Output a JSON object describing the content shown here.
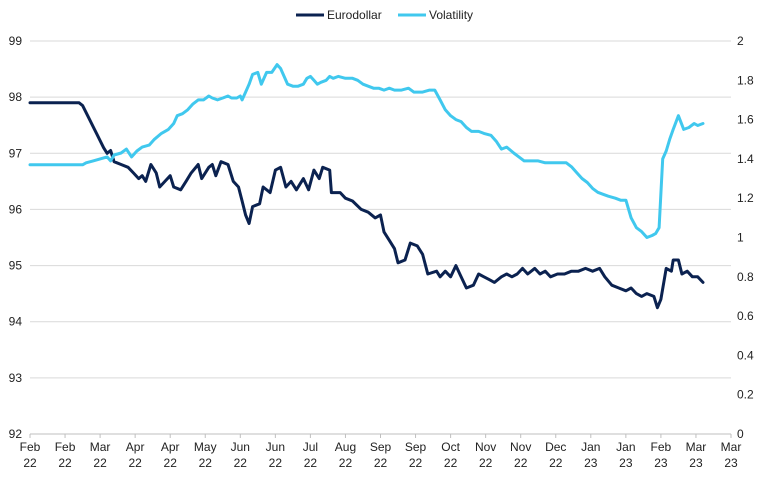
{
  "chart_data": {
    "type": "line",
    "title": "",
    "legend_position": "top-center",
    "grid": true,
    "x_tick_labels": [
      [
        "Feb",
        "22"
      ],
      [
        "Feb",
        "22"
      ],
      [
        "Mar",
        "22"
      ],
      [
        "Apr",
        "22"
      ],
      [
        "Apr",
        "22"
      ],
      [
        "May",
        "22"
      ],
      [
        "Jun",
        "22"
      ],
      [
        "Jun",
        "22"
      ],
      [
        "Jul",
        "22"
      ],
      [
        "Aug",
        "22"
      ],
      [
        "Sep",
        "22"
      ],
      [
        "Sep",
        "22"
      ],
      [
        "Oct",
        "22"
      ],
      [
        "Nov",
        "22"
      ],
      [
        "Nov",
        "22"
      ],
      [
        "Dec",
        "22"
      ],
      [
        "Jan",
        "23"
      ],
      [
        "Jan",
        "23"
      ],
      [
        "Feb",
        "23"
      ],
      [
        "Mar",
        "23"
      ],
      [
        "Mar",
        "23"
      ]
    ],
    "x_range": [
      0,
      20
    ],
    "y_left": {
      "min": 92,
      "max": 99,
      "ticks": [
        "92",
        "93",
        "94",
        "95",
        "96",
        "97",
        "98",
        "99"
      ]
    },
    "y_right": {
      "min": 0,
      "max": 2,
      "ticks": [
        "0",
        "0.2",
        "0.4",
        "0.6",
        "0.8",
        "1",
        "1.2",
        "1.4",
        "1.6",
        "1.8",
        "2"
      ]
    },
    "series": [
      {
        "name": "Eurodollar",
        "axis": "left",
        "color": "#0b2250",
        "points": [
          [
            0,
            97.9
          ],
          [
            1.4,
            97.9
          ],
          [
            1.5,
            97.85
          ],
          [
            1.7,
            97.6
          ],
          [
            1.9,
            97.35
          ],
          [
            2.1,
            97.1
          ],
          [
            2.2,
            97.0
          ],
          [
            2.3,
            97.05
          ],
          [
            2.4,
            96.85
          ],
          [
            2.6,
            96.8
          ],
          [
            2.8,
            96.75
          ],
          [
            2.95,
            96.65
          ],
          [
            3.1,
            96.55
          ],
          [
            3.2,
            96.6
          ],
          [
            3.3,
            96.5
          ],
          [
            3.45,
            96.8
          ],
          [
            3.6,
            96.65
          ],
          [
            3.7,
            96.4
          ],
          [
            3.85,
            96.5
          ],
          [
            4.0,
            96.6
          ],
          [
            4.1,
            96.4
          ],
          [
            4.3,
            96.35
          ],
          [
            4.45,
            96.5
          ],
          [
            4.6,
            96.65
          ],
          [
            4.8,
            96.8
          ],
          [
            4.9,
            96.55
          ],
          [
            5.1,
            96.75
          ],
          [
            5.2,
            96.8
          ],
          [
            5.3,
            96.6
          ],
          [
            5.45,
            96.85
          ],
          [
            5.65,
            96.8
          ],
          [
            5.8,
            96.5
          ],
          [
            5.95,
            96.4
          ],
          [
            6.05,
            96.15
          ],
          [
            6.15,
            95.9
          ],
          [
            6.25,
            95.75
          ],
          [
            6.35,
            96.05
          ],
          [
            6.55,
            96.1
          ],
          [
            6.65,
            96.4
          ],
          [
            6.85,
            96.3
          ],
          [
            7.0,
            96.7
          ],
          [
            7.15,
            96.75
          ],
          [
            7.3,
            96.4
          ],
          [
            7.45,
            96.5
          ],
          [
            7.6,
            96.35
          ],
          [
            7.8,
            96.55
          ],
          [
            7.95,
            96.35
          ],
          [
            8.1,
            96.7
          ],
          [
            8.25,
            96.55
          ],
          [
            8.35,
            96.75
          ],
          [
            8.55,
            96.7
          ],
          [
            8.6,
            96.3
          ],
          [
            8.85,
            96.3
          ],
          [
            9.0,
            96.2
          ],
          [
            9.2,
            96.15
          ],
          [
            9.45,
            96.0
          ],
          [
            9.65,
            95.95
          ],
          [
            9.85,
            95.85
          ],
          [
            10.0,
            95.9
          ],
          [
            10.1,
            95.6
          ],
          [
            10.25,
            95.45
          ],
          [
            10.4,
            95.3
          ],
          [
            10.5,
            95.05
          ],
          [
            10.7,
            95.1
          ],
          [
            10.85,
            95.4
          ],
          [
            11.05,
            95.35
          ],
          [
            11.2,
            95.2
          ],
          [
            11.35,
            94.85
          ],
          [
            11.6,
            94.9
          ],
          [
            11.7,
            94.8
          ],
          [
            11.85,
            94.9
          ],
          [
            12.0,
            94.8
          ],
          [
            12.15,
            95.0
          ],
          [
            12.3,
            94.8
          ],
          [
            12.45,
            94.6
          ],
          [
            12.65,
            94.65
          ],
          [
            12.8,
            94.85
          ],
          [
            12.95,
            94.8
          ],
          [
            13.1,
            94.75
          ],
          [
            13.25,
            94.7
          ],
          [
            13.45,
            94.8
          ],
          [
            13.6,
            94.85
          ],
          [
            13.75,
            94.8
          ],
          [
            13.9,
            94.85
          ],
          [
            14.05,
            94.95
          ],
          [
            14.2,
            94.85
          ],
          [
            14.4,
            94.95
          ],
          [
            14.55,
            94.85
          ],
          [
            14.7,
            94.9
          ],
          [
            14.85,
            94.8
          ],
          [
            15.05,
            94.85
          ],
          [
            15.25,
            94.85
          ],
          [
            15.45,
            94.9
          ],
          [
            15.65,
            94.9
          ],
          [
            15.85,
            94.95
          ],
          [
            16.05,
            94.9
          ],
          [
            16.25,
            94.95
          ],
          [
            16.4,
            94.8
          ],
          [
            16.6,
            94.65
          ],
          [
            16.8,
            94.6
          ],
          [
            17.0,
            94.55
          ],
          [
            17.15,
            94.6
          ],
          [
            17.3,
            94.5
          ],
          [
            17.45,
            94.45
          ],
          [
            17.6,
            94.5
          ],
          [
            17.8,
            94.45
          ],
          [
            17.9,
            94.25
          ],
          [
            18.0,
            94.4
          ],
          [
            18.15,
            94.95
          ],
          [
            18.3,
            94.9
          ],
          [
            18.35,
            95.1
          ],
          [
            18.5,
            95.1
          ],
          [
            18.6,
            94.85
          ],
          [
            18.75,
            94.9
          ],
          [
            18.9,
            94.8
          ],
          [
            19.05,
            94.8
          ],
          [
            19.2,
            94.7
          ]
        ]
      },
      {
        "name": "Volatility",
        "axis": "right",
        "color": "#40c8ee",
        "points": [
          [
            0,
            1.37
          ],
          [
            1.5,
            1.37
          ],
          [
            1.6,
            1.38
          ],
          [
            1.8,
            1.39
          ],
          [
            2.0,
            1.4
          ],
          [
            2.2,
            1.41
          ],
          [
            2.3,
            1.39
          ],
          [
            2.4,
            1.42
          ],
          [
            2.6,
            1.43
          ],
          [
            2.75,
            1.45
          ],
          [
            2.9,
            1.41
          ],
          [
            3.05,
            1.44
          ],
          [
            3.2,
            1.46
          ],
          [
            3.4,
            1.47
          ],
          [
            3.55,
            1.5
          ],
          [
            3.75,
            1.53
          ],
          [
            3.95,
            1.55
          ],
          [
            4.1,
            1.58
          ],
          [
            4.2,
            1.62
          ],
          [
            4.35,
            1.63
          ],
          [
            4.5,
            1.65
          ],
          [
            4.65,
            1.68
          ],
          [
            4.8,
            1.7
          ],
          [
            4.95,
            1.7
          ],
          [
            5.1,
            1.72
          ],
          [
            5.2,
            1.71
          ],
          [
            5.35,
            1.7
          ],
          [
            5.5,
            1.71
          ],
          [
            5.65,
            1.72
          ],
          [
            5.75,
            1.71
          ],
          [
            5.9,
            1.71
          ],
          [
            6.0,
            1.72
          ],
          [
            6.05,
            1.7
          ],
          [
            6.15,
            1.74
          ],
          [
            6.25,
            1.78
          ],
          [
            6.35,
            1.83
          ],
          [
            6.5,
            1.84
          ],
          [
            6.6,
            1.78
          ],
          [
            6.75,
            1.84
          ],
          [
            6.9,
            1.84
          ],
          [
            7.05,
            1.88
          ],
          [
            7.15,
            1.86
          ],
          [
            7.25,
            1.82
          ],
          [
            7.35,
            1.78
          ],
          [
            7.5,
            1.77
          ],
          [
            7.65,
            1.77
          ],
          [
            7.8,
            1.78
          ],
          [
            7.9,
            1.81
          ],
          [
            8.0,
            1.82
          ],
          [
            8.1,
            1.8
          ],
          [
            8.2,
            1.78
          ],
          [
            8.3,
            1.79
          ],
          [
            8.45,
            1.8
          ],
          [
            8.55,
            1.82
          ],
          [
            8.65,
            1.81
          ],
          [
            8.8,
            1.82
          ],
          [
            9.0,
            1.81
          ],
          [
            9.2,
            1.81
          ],
          [
            9.35,
            1.8
          ],
          [
            9.5,
            1.78
          ],
          [
            9.65,
            1.77
          ],
          [
            9.8,
            1.76
          ],
          [
            9.95,
            1.76
          ],
          [
            10.1,
            1.75
          ],
          [
            10.25,
            1.76
          ],
          [
            10.4,
            1.75
          ],
          [
            10.6,
            1.75
          ],
          [
            10.8,
            1.76
          ],
          [
            10.95,
            1.74
          ],
          [
            11.2,
            1.74
          ],
          [
            11.4,
            1.75
          ],
          [
            11.55,
            1.75
          ],
          [
            11.7,
            1.7
          ],
          [
            11.85,
            1.65
          ],
          [
            12.0,
            1.62
          ],
          [
            12.15,
            1.6
          ],
          [
            12.3,
            1.59
          ],
          [
            12.45,
            1.56
          ],
          [
            12.6,
            1.54
          ],
          [
            12.8,
            1.54
          ],
          [
            12.95,
            1.53
          ],
          [
            13.15,
            1.52
          ],
          [
            13.3,
            1.49
          ],
          [
            13.45,
            1.45
          ],
          [
            13.6,
            1.46
          ],
          [
            13.8,
            1.43
          ],
          [
            13.95,
            1.41
          ],
          [
            14.1,
            1.39
          ],
          [
            14.3,
            1.39
          ],
          [
            14.5,
            1.39
          ],
          [
            14.7,
            1.38
          ],
          [
            14.9,
            1.38
          ],
          [
            15.1,
            1.38
          ],
          [
            15.3,
            1.38
          ],
          [
            15.45,
            1.36
          ],
          [
            15.6,
            1.33
          ],
          [
            15.75,
            1.3
          ],
          [
            15.9,
            1.28
          ],
          [
            16.05,
            1.25
          ],
          [
            16.2,
            1.23
          ],
          [
            16.35,
            1.22
          ],
          [
            16.5,
            1.21
          ],
          [
            16.7,
            1.2
          ],
          [
            16.85,
            1.19
          ],
          [
            17.0,
            1.19
          ],
          [
            17.15,
            1.1
          ],
          [
            17.3,
            1.05
          ],
          [
            17.45,
            1.03
          ],
          [
            17.6,
            1.0
          ],
          [
            17.75,
            1.01
          ],
          [
            17.85,
            1.02
          ],
          [
            17.95,
            1.05
          ],
          [
            18.05,
            1.4
          ],
          [
            18.15,
            1.44
          ],
          [
            18.25,
            1.5
          ],
          [
            18.35,
            1.55
          ],
          [
            18.5,
            1.62
          ],
          [
            18.65,
            1.55
          ],
          [
            18.8,
            1.56
          ],
          [
            18.95,
            1.58
          ],
          [
            19.05,
            1.57
          ],
          [
            19.2,
            1.58
          ]
        ]
      }
    ]
  }
}
